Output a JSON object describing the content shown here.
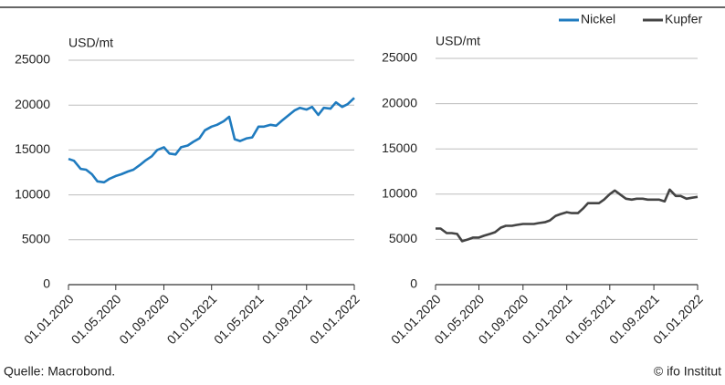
{
  "chart_data": [
    {
      "type": "line",
      "ylabel": "USD/mt",
      "x": [
        "2020-01-01",
        "2020-01-15",
        "2020-02-01",
        "2020-02-15",
        "2020-03-01",
        "2020-03-15",
        "2020-04-01",
        "2020-04-15",
        "2020-05-01",
        "2020-05-15",
        "2020-06-01",
        "2020-06-15",
        "2020-07-01",
        "2020-07-15",
        "2020-08-01",
        "2020-08-15",
        "2020-09-01",
        "2020-09-15",
        "2020-10-01",
        "2020-10-15",
        "2020-11-01",
        "2020-11-15",
        "2020-12-01",
        "2020-12-15",
        "2021-01-01",
        "2021-01-15",
        "2021-02-01",
        "2021-02-15",
        "2021-03-01",
        "2021-03-15",
        "2021-04-01",
        "2021-04-15",
        "2021-05-01",
        "2021-05-15",
        "2021-06-01",
        "2021-06-15",
        "2021-07-01",
        "2021-07-15",
        "2021-08-01",
        "2021-08-15",
        "2021-09-01",
        "2021-09-15",
        "2021-10-01",
        "2021-10-15",
        "2021-11-01",
        "2021-11-15",
        "2021-12-01",
        "2021-12-15",
        "2022-01-01"
      ],
      "series": [
        {
          "name": "Nickel",
          "color": "#1f7bbf",
          "values": [
            14000,
            13800,
            12900,
            12800,
            12300,
            11500,
            11400,
            11800,
            12100,
            12300,
            12600,
            12800,
            13300,
            13800,
            14300,
            15000,
            15300,
            14600,
            14500,
            15300,
            15500,
            15900,
            16300,
            17200,
            17600,
            17800,
            18200,
            18700,
            16200,
            16000,
            16300,
            16400,
            17600,
            17600,
            17800,
            17700,
            18300,
            18800,
            19400,
            19700,
            19500,
            19800,
            18900,
            19700,
            19600,
            20300,
            19800,
            20100,
            20800
          ]
        }
      ],
      "ylim": [
        0,
        25000
      ],
      "yticks": [
        0,
        5000,
        10000,
        15000,
        20000,
        25000
      ],
      "xlim": [
        "2020-01-01",
        "2022-01-01"
      ],
      "xticks": [
        {
          "value": "2020-01-01",
          "label": "01.01.2020"
        },
        {
          "value": "2020-05-01",
          "label": "01.05.2020"
        },
        {
          "value": "2020-09-01",
          "label": "01.09.2020"
        },
        {
          "value": "2021-01-01",
          "label": "01.01.2021"
        },
        {
          "value": "2021-05-01",
          "label": "01.05.2021"
        },
        {
          "value": "2021-09-01",
          "label": "01.09.2021"
        },
        {
          "value": "2022-01-01",
          "label": "01.01.2022"
        }
      ],
      "grid": true
    },
    {
      "type": "line",
      "ylabel": "USD/mt",
      "x": [
        "2020-01-01",
        "2020-01-15",
        "2020-02-01",
        "2020-02-15",
        "2020-03-01",
        "2020-03-15",
        "2020-04-01",
        "2020-04-15",
        "2020-05-01",
        "2020-05-15",
        "2020-06-01",
        "2020-06-15",
        "2020-07-01",
        "2020-07-15",
        "2020-08-01",
        "2020-08-15",
        "2020-09-01",
        "2020-09-15",
        "2020-10-01",
        "2020-10-15",
        "2020-11-01",
        "2020-11-15",
        "2020-12-01",
        "2020-12-15",
        "2021-01-01",
        "2021-01-15",
        "2021-02-01",
        "2021-02-15",
        "2021-03-01",
        "2021-03-15",
        "2021-04-01",
        "2021-04-15",
        "2021-05-01",
        "2021-05-15",
        "2021-06-01",
        "2021-06-15",
        "2021-07-01",
        "2021-07-15",
        "2021-08-01",
        "2021-08-15",
        "2021-09-01",
        "2021-09-15",
        "2021-10-01",
        "2021-10-15",
        "2021-11-01",
        "2021-11-15",
        "2021-12-01",
        "2021-12-15",
        "2022-01-01"
      ],
      "series": [
        {
          "name": "Kupfer",
          "color": "#444444",
          "values": [
            6200,
            6200,
            5700,
            5700,
            5600,
            4800,
            5000,
            5200,
            5200,
            5400,
            5600,
            5800,
            6300,
            6500,
            6500,
            6600,
            6700,
            6700,
            6700,
            6800,
            6900,
            7100,
            7600,
            7800,
            8000,
            7900,
            7900,
            8400,
            9000,
            9000,
            9000,
            9400,
            10000,
            10400,
            9900,
            9500,
            9400,
            9500,
            9500,
            9400,
            9400,
            9400,
            9200,
            10500,
            9800,
            9800,
            9500,
            9600,
            9700
          ]
        }
      ],
      "ylim": [
        0,
        25000
      ],
      "yticks": [
        0,
        5000,
        10000,
        15000,
        20000,
        25000
      ],
      "xlim": [
        "2020-01-01",
        "2022-01-01"
      ],
      "xticks": [
        {
          "value": "2020-01-01",
          "label": "01.01.2020"
        },
        {
          "value": "2020-05-01",
          "label": "01.05.2020"
        },
        {
          "value": "2020-09-01",
          "label": "01.09.2020"
        },
        {
          "value": "2021-01-01",
          "label": "01.01.2021"
        },
        {
          "value": "2021-05-01",
          "label": "01.05.2021"
        },
        {
          "value": "2021-09-01",
          "label": "01.09.2021"
        },
        {
          "value": "2022-01-01",
          "label": "01.01.2022"
        }
      ],
      "grid": true
    }
  ],
  "footer": {
    "source": "Quelle: Macrobond.",
    "credit": "© ifo Institut"
  }
}
